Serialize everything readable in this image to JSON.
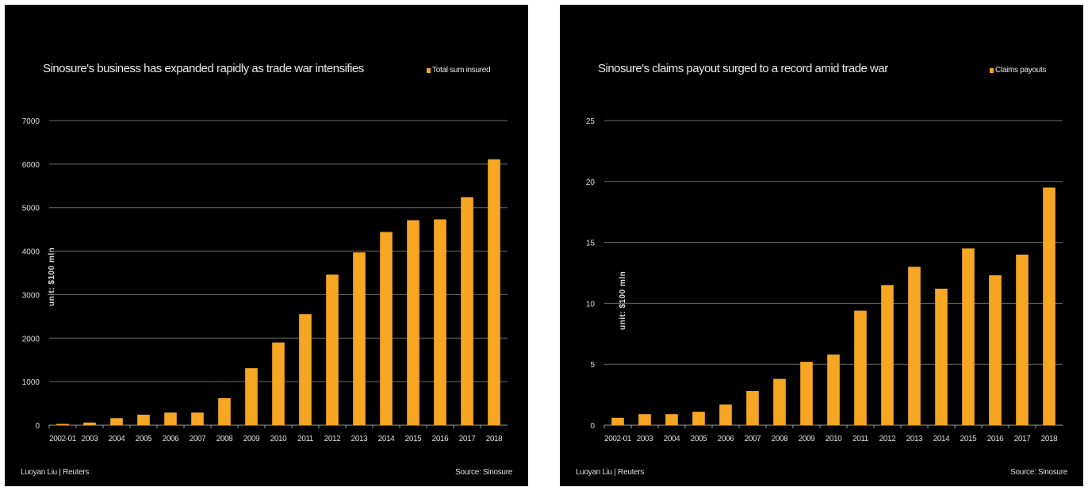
{
  "chart_data": [
    {
      "type": "bar",
      "title": "Sinosure's business has expanded rapidly as trade war intensifies",
      "legend": "Total sum insured",
      "ylabel": "unit: $100 mln",
      "categories": [
        "2002-01",
        "2003",
        "2004",
        "2005",
        "2006",
        "2007",
        "2008",
        "2009",
        "2010",
        "2011",
        "2012",
        "2013",
        "2014",
        "2015",
        "2016",
        "2017",
        "2018"
      ],
      "series": [
        {
          "name": "Total sum insured",
          "values": [
            30,
            60,
            160,
            240,
            290,
            290,
            620,
            1310,
            1900,
            2550,
            3460,
            3970,
            4440,
            4710,
            4730,
            5240,
            6110
          ]
        }
      ],
      "ylim": [
        0,
        7000
      ],
      "yticks": [
        0,
        1000,
        2000,
        3000,
        4000,
        5000,
        6000,
        7000
      ],
      "grid": true,
      "legend_position": "top-right",
      "color": "#F6A623",
      "credit": "Luoyan Liu | Reuters",
      "source": "Source: Sinosure"
    },
    {
      "type": "bar",
      "title": "Sinosure's claims payout surged to a record amid trade war",
      "legend": "Claims payouts",
      "ylabel": "unit: $100 mln",
      "categories": [
        "2002-01",
        "2003",
        "2004",
        "2005",
        "2006",
        "2007",
        "2008",
        "2009",
        "2010",
        "2011",
        "2012",
        "2013",
        "2014",
        "2015",
        "2016",
        "2017",
        "2018"
      ],
      "series": [
        {
          "name": "Claims payouts",
          "values": [
            0.6,
            0.9,
            0.9,
            1.1,
            1.7,
            2.8,
            3.8,
            5.2,
            5.8,
            9.4,
            11.5,
            13.0,
            11.2,
            14.5,
            12.3,
            14.0,
            19.5
          ]
        }
      ],
      "ylim": [
        0,
        25
      ],
      "yticks": [
        0,
        5,
        10,
        15,
        20,
        25
      ],
      "grid": true,
      "legend_position": "top-right",
      "color": "#F6A623",
      "credit": "Luoyan Liu | Reuters",
      "source": "Source: Sinosure"
    }
  ]
}
